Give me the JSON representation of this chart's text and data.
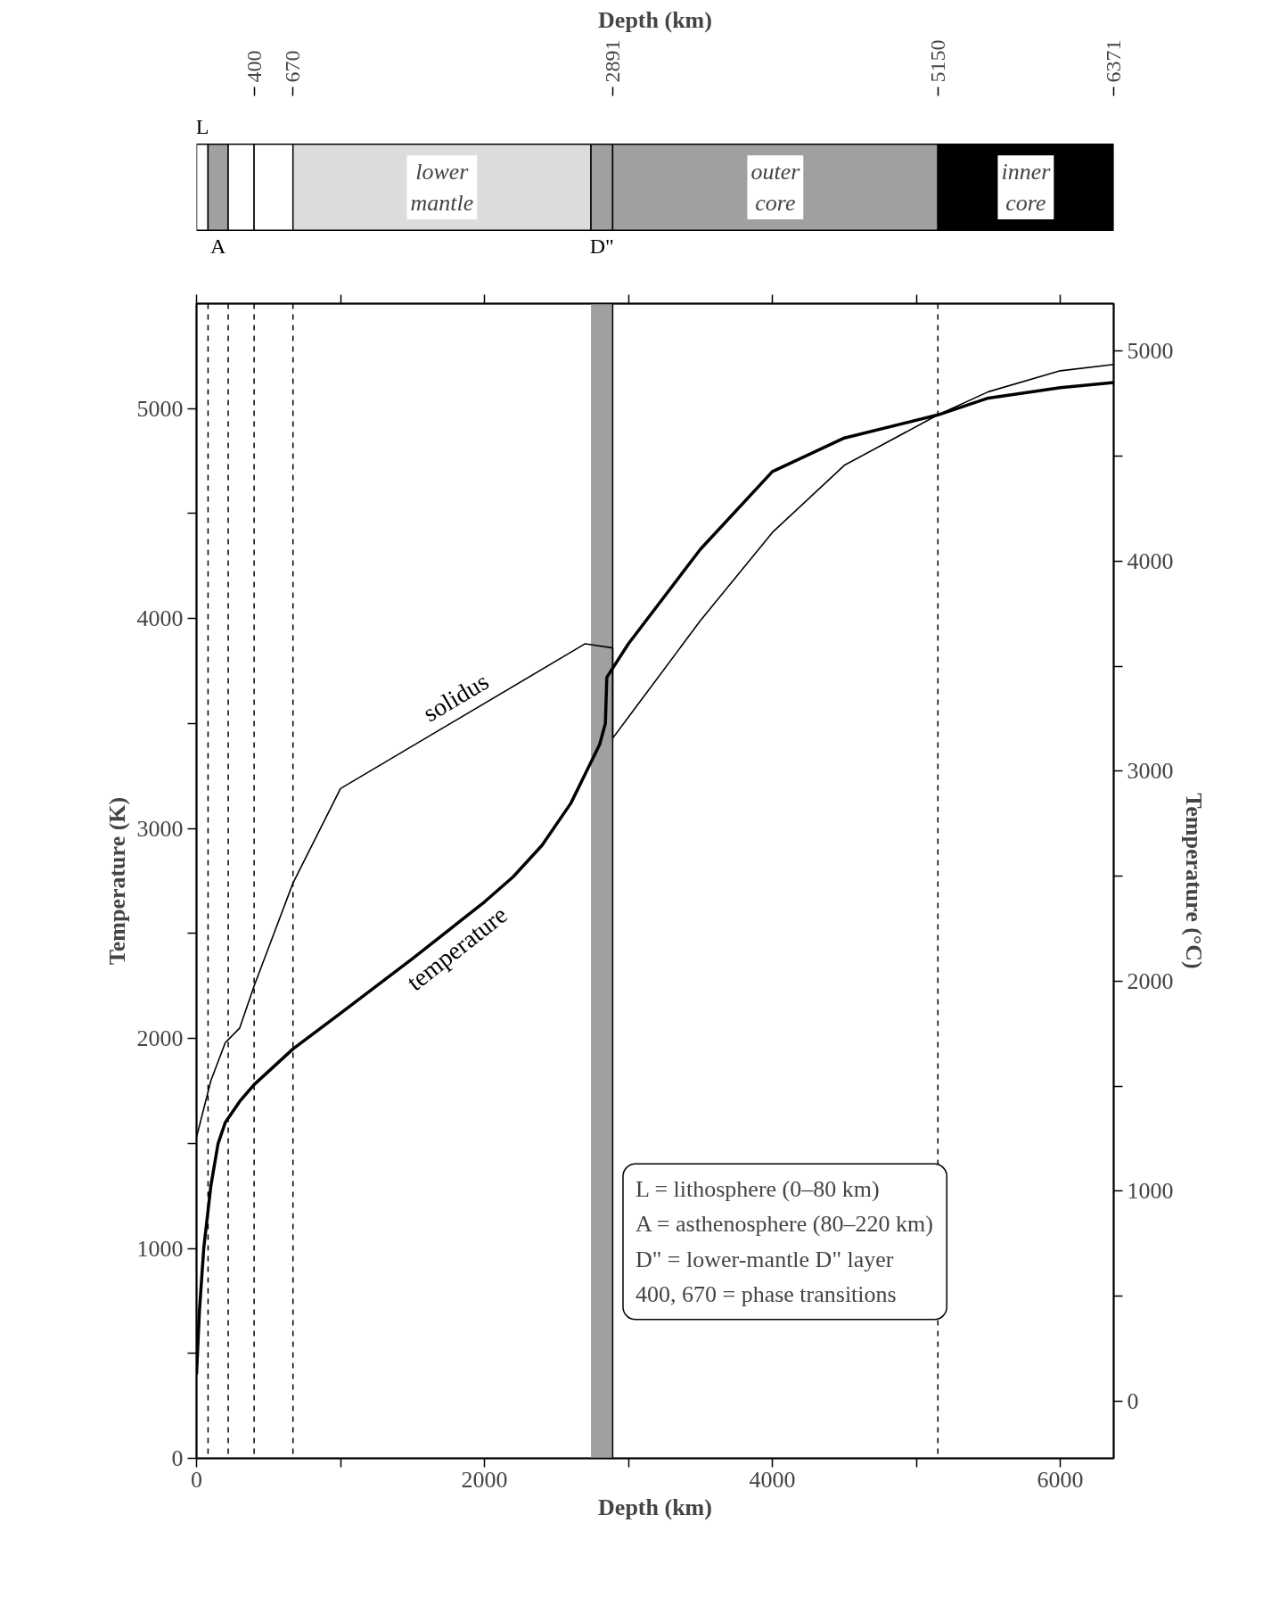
{
  "chart_data": [
    {
      "type": "bar",
      "title": "Depth (km)",
      "orientation": "horizontal",
      "stacked": true,
      "categories": [
        null
      ],
      "xlim": [
        0,
        6371
      ],
      "xticks": [
        400,
        670,
        2891,
        5150,
        6371
      ],
      "tick_labels": "x",
      "series": [
        {
          "name": "L",
          "color": "#ffffff",
          "values": [
            80
          ]
        },
        {
          "name": "A",
          "color": "#a0a0a0",
          "values": [
            140
          ]
        },
        {
          "color": "#ffffff",
          "values": [
            180
          ]
        },
        {
          "color": "#ffffff",
          "values": [
            270
          ]
        },
        {
          "name": "lower mantle",
          "color": "#dcdcdc",
          "values": [
            2070
          ]
        },
        {
          "name": "D\"",
          "color": "#a0a0a0",
          "values": [
            151
          ]
        },
        {
          "name": "outer core",
          "color": "#a0a0a0",
          "values": [
            2259
          ]
        },
        {
          "name": "inner core",
          "color": "#000000",
          "values": [
            1221
          ]
        }
      ]
    },
    {
      "type": "line",
      "xlabel": "Depth (km)",
      "ylabel": "Temperature (K)",
      "y2label": "Temperature (°C)",
      "xlim": [
        0,
        6371
      ],
      "xticks": [
        0,
        {
          "value": 1000,
          "label": null
        },
        2000,
        {
          "value": 3000,
          "label": null
        },
        4000,
        {
          "value": 5000,
          "label": null
        },
        6000
      ],
      "ylim": [
        0,
        5500
      ],
      "yticks": [
        0,
        {
          "value": 500,
          "label": null
        },
        1000,
        {
          "value": 1500,
          "label": null
        },
        2000,
        {
          "value": 2500,
          "label": null
        },
        3000,
        {
          "value": 3500,
          "label": null
        },
        4000,
        {
          "value": 4500,
          "label": null
        },
        5000
      ],
      "y2lim": [
        -273,
        5227
      ],
      "y2ticks": [
        0,
        {
          "value": 500,
          "label": null
        },
        1000,
        {
          "value": 1500,
          "label": null
        },
        2000,
        {
          "value": 2500,
          "label": null
        },
        3000,
        {
          "value": 3500,
          "label": null
        },
        4000,
        {
          "value": 4500,
          "label": null
        },
        5000
      ],
      "grid": false,
      "series": [
        {
          "name": "solidus",
          "color": "#000000",
          "x": [
            0,
            100,
            200,
            300,
            400,
            670,
            1000,
            2700,
            2891,
            2891,
            3000,
            3500,
            4000,
            4500,
            5150,
            5500,
            6000,
            6371
          ],
          "values": [
            1530,
            1800,
            1980,
            2050,
            2250,
            2740,
            3190,
            3880,
            3860,
            3430,
            3530,
            3990,
            4410,
            4730,
            4970,
            5080,
            5180,
            5210
          ]
        },
        {
          "name": "temperature",
          "color": "#000000",
          "x": [
            0,
            20,
            50,
            100,
            150,
            200,
            300,
            400,
            670,
            1000,
            1500,
            2000,
            2200,
            2400,
            2600,
            2700,
            2800,
            2840,
            2850,
            3000,
            3500,
            4000,
            4500,
            5150,
            5500,
            6000,
            6371
          ],
          "values": [
            400,
            700,
            1000,
            1300,
            1500,
            1600,
            1700,
            1780,
            1950,
            2120,
            2380,
            2650,
            2770,
            2920,
            3120,
            3260,
            3400,
            3500,
            3720,
            3880,
            4330,
            4700,
            4860,
            4970,
            5050,
            5100,
            5124
          ]
        }
      ],
      "bands": [
        {
          "axis": "x",
          "from": 2740,
          "to": 2891,
          "color": "#a0a0a0"
        }
      ],
      "ref_lines": [
        {
          "axis": "x",
          "value": 80,
          "line_style": "dashed"
        },
        {
          "axis": "x",
          "value": 220,
          "line_style": "dashed"
        },
        {
          "axis": "x",
          "value": 400,
          "line_style": "dashed"
        },
        {
          "axis": "x",
          "value": 670,
          "line_style": "dashed"
        },
        {
          "axis": "x",
          "value": 2891,
          "line_style": "solid"
        },
        {
          "axis": "x",
          "value": 5150,
          "line_style": "dashed"
        }
      ],
      "annotations": [
        "L = lithosphere (0–80 km)",
        "A = asthenosphere (80–220 km)",
        "D\" =  lower-mantle D\" layer",
        "400, 670 = phase transitions"
      ]
    }
  ]
}
